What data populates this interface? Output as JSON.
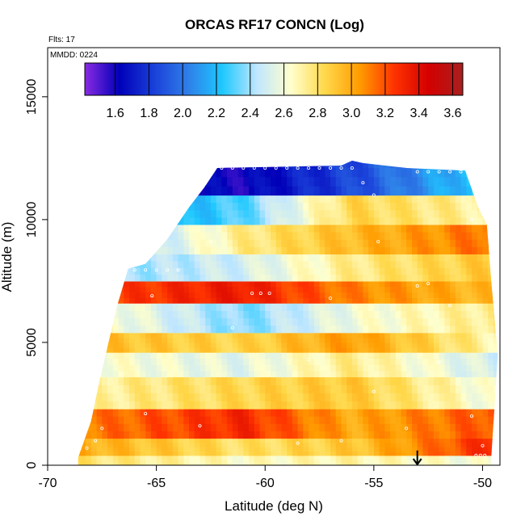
{
  "chart_data": {
    "type": "heatmap",
    "title": "ORCAS RF17 CONCN (Log)",
    "subtitle_flights": "Flts: 17",
    "subtitle_date": "MMDD: 0224",
    "xlabel": "Latitude (deg N)",
    "ylabel": "Altitude (m)",
    "xlim": [
      -70,
      -49.2
    ],
    "ylim": [
      0,
      17000
    ],
    "x_ticks": [
      -70,
      -65,
      -60,
      -55,
      -50
    ],
    "y_ticks": [
      0,
      5000,
      10000,
      15000
    ],
    "colorbar": {
      "min": 1.42,
      "max": 3.66,
      "ticks": [
        1.6,
        1.8,
        2.0,
        2.2,
        2.4,
        2.6,
        2.8,
        3.0,
        3.2,
        3.4,
        3.6
      ],
      "colors": [
        "#8a2be2",
        "#0000b8",
        "#1a3fd9",
        "#2f7fe8",
        "#1ec8ff",
        "#bfe6ff",
        "#ffffcc",
        "#ffd84a",
        "#ff9c00",
        "#ff3300",
        "#d40000",
        "#a82020"
      ]
    },
    "top_boundary": [
      {
        "x": -68.6,
        "y": 300
      },
      {
        "x": -68.0,
        "y": 1800
      },
      {
        "x": -67.6,
        "y": 3500
      },
      {
        "x": -67.2,
        "y": 5000
      },
      {
        "x": -66.8,
        "y": 6500
      },
      {
        "x": -66.3,
        "y": 8000
      },
      {
        "x": -65.5,
        "y": 8200
      },
      {
        "x": -64.5,
        "y": 9200
      },
      {
        "x": -63.5,
        "y": 10500
      },
      {
        "x": -62.8,
        "y": 11300
      },
      {
        "x": -62.2,
        "y": 12100
      },
      {
        "x": -56.5,
        "y": 12200
      },
      {
        "x": -56.0,
        "y": 12400
      },
      {
        "x": -55.5,
        "y": 12300
      },
      {
        "x": -53.5,
        "y": 12100
      },
      {
        "x": -50.8,
        "y": 12000
      },
      {
        "x": -50.2,
        "y": 10500
      },
      {
        "x": -49.8,
        "y": 9800
      },
      {
        "x": -49.6,
        "y": 7500
      },
      {
        "x": -49.3,
        "y": 4500
      },
      {
        "x": -49.6,
        "y": 300
      }
    ],
    "bands": [
      {
        "lat": [
          -68.6,
          -61.0,
          -56.0,
          -49.6
        ],
        "y0": 0,
        "y1": 400,
        "values": [
          2.8,
          2.65,
          2.7,
          2.6
        ]
      },
      {
        "lat": [
          -68.6,
          -61.0,
          -56.0,
          -49.6
        ],
        "y0": 400,
        "y1": 1100,
        "values": [
          3.0,
          2.8,
          2.9,
          3.3
        ]
      },
      {
        "lat": [
          -68.6,
          -61.0,
          -56.0,
          -49.6
        ],
        "y0": 1100,
        "y1": 2300,
        "values": [
          3.1,
          3.3,
          3.0,
          3.2
        ]
      },
      {
        "lat": [
          -68.6,
          -61.0,
          -56.0,
          -49.6
        ],
        "y0": 2300,
        "y1": 3600,
        "values": [
          2.7,
          2.85,
          2.9,
          2.6
        ]
      },
      {
        "lat": [
          -68.6,
          -61.0,
          -56.0,
          -49.6
        ],
        "y0": 3600,
        "y1": 4600,
        "values": [
          2.65,
          2.55,
          2.75,
          2.5
        ]
      },
      {
        "lat": [
          -68.6,
          -61.0,
          -56.0,
          -49.6
        ],
        "y0": 4600,
        "y1": 5400,
        "values": [
          2.95,
          2.85,
          3.05,
          2.7
        ]
      },
      {
        "lat": [
          -68.6,
          -61.0,
          -56.0,
          -49.6
        ],
        "y0": 5400,
        "y1": 6600,
        "values": [
          2.7,
          2.35,
          2.6,
          2.75
        ]
      },
      {
        "lat": [
          -68.6,
          -61.0,
          -56.0,
          -49.6
        ],
        "y0": 6600,
        "y1": 7500,
        "values": [
          3.2,
          3.35,
          3.1,
          2.95
        ]
      },
      {
        "lat": [
          -68.6,
          -61.0,
          -56.0,
          -49.6
        ],
        "y0": 7500,
        "y1": 8600,
        "values": [
          2.35,
          2.5,
          2.75,
          2.9
        ]
      },
      {
        "lat": [
          -68.6,
          -61.0,
          -56.0,
          -49.6
        ],
        "y0": 8600,
        "y1": 9800,
        "values": [
          2.2,
          2.75,
          2.95,
          3.15
        ]
      },
      {
        "lat": [
          -68.6,
          -61.0,
          -56.0,
          -49.6
        ],
        "y0": 9800,
        "y1": 11000,
        "values": [
          2.0,
          2.3,
          2.85,
          2.7
        ]
      },
      {
        "lat": [
          -68.6,
          -61.0,
          -56.0,
          -49.6
        ],
        "y0": 11000,
        "y1": 12500,
        "values": [
          1.75,
          1.6,
          1.85,
          2.3
        ]
      }
    ],
    "sample_points": [
      {
        "x": -67.0,
        "y": 7950
      },
      {
        "x": -66.5,
        "y": 7950
      },
      {
        "x": -66.0,
        "y": 7950
      },
      {
        "x": -65.5,
        "y": 7950
      },
      {
        "x": -65.0,
        "y": 7950
      },
      {
        "x": -64.5,
        "y": 7950
      },
      {
        "x": -64.0,
        "y": 7950
      },
      {
        "x": -62.0,
        "y": 12100
      },
      {
        "x": -61.5,
        "y": 12100
      },
      {
        "x": -61.0,
        "y": 12100
      },
      {
        "x": -60.5,
        "y": 12100
      },
      {
        "x": -60.0,
        "y": 12100
      },
      {
        "x": -59.5,
        "y": 12100
      },
      {
        "x": -59.0,
        "y": 12100
      },
      {
        "x": -58.5,
        "y": 12100
      },
      {
        "x": -58.0,
        "y": 12100
      },
      {
        "x": -57.5,
        "y": 12100
      },
      {
        "x": -57.0,
        "y": 12100
      },
      {
        "x": -56.5,
        "y": 12100
      },
      {
        "x": -56.0,
        "y": 12100
      },
      {
        "x": -53.0,
        "y": 11950
      },
      {
        "x": -52.5,
        "y": 11950
      },
      {
        "x": -52.0,
        "y": 11950
      },
      {
        "x": -51.5,
        "y": 11950
      },
      {
        "x": -51.0,
        "y": 11950
      },
      {
        "x": -65.2,
        "y": 6900
      },
      {
        "x": -60.6,
        "y": 7000
      },
      {
        "x": -60.2,
        "y": 7000
      },
      {
        "x": -59.8,
        "y": 7000
      },
      {
        "x": -67.5,
        "y": 1500
      },
      {
        "x": -67.8,
        "y": 1000
      },
      {
        "x": -68.2,
        "y": 700
      },
      {
        "x": -65.5,
        "y": 2100
      },
      {
        "x": -63.0,
        "y": 1600
      },
      {
        "x": -58.5,
        "y": 900
      },
      {
        "x": -55.0,
        "y": 3000
      },
      {
        "x": -53.5,
        "y": 1500
      },
      {
        "x": -52.0,
        "y": 4200
      },
      {
        "x": -50.5,
        "y": 2000
      },
      {
        "x": -50.0,
        "y": 800
      },
      {
        "x": -49.9,
        "y": 400
      },
      {
        "x": -50.1,
        "y": 400
      },
      {
        "x": -50.3,
        "y": 400
      },
      {
        "x": -51.5,
        "y": 6500
      },
      {
        "x": -52.5,
        "y": 7400
      },
      {
        "x": -53.0,
        "y": 7300
      },
      {
        "x": -54.8,
        "y": 9100
      },
      {
        "x": -55.5,
        "y": 11500
      },
      {
        "x": -55.0,
        "y": 11000
      },
      {
        "x": -50.5,
        "y": 10000
      },
      {
        "x": -62.5,
        "y": 9100
      },
      {
        "x": -61.5,
        "y": 5600
      },
      {
        "x": -58.0,
        "y": 4300
      },
      {
        "x": -56.5,
        "y": 1000
      },
      {
        "x": -57.0,
        "y": 6800
      }
    ],
    "marker": {
      "x": -53.0,
      "y": 600
    }
  }
}
